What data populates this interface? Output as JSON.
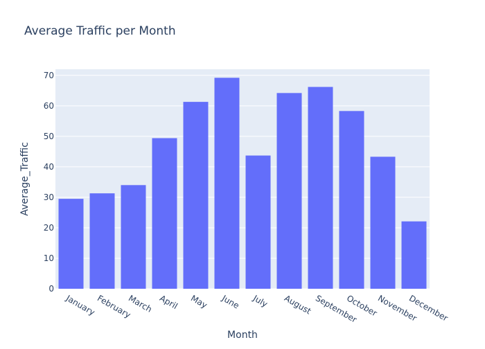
{
  "chart_data": {
    "type": "bar",
    "title": "Average Traffic per Month",
    "xlabel": "Month",
    "ylabel": "Average_Traffic",
    "categories": [
      "January",
      "February",
      "March",
      "April",
      "May",
      "June",
      "July",
      "August",
      "September",
      "October",
      "November",
      "December"
    ],
    "values": [
      29.5,
      31.3,
      34.0,
      49.4,
      61.3,
      69.2,
      43.7,
      64.2,
      66.2,
      58.3,
      43.3,
      22.1
    ],
    "ylim": [
      0,
      72
    ],
    "yticks": [
      0,
      10,
      20,
      30,
      40,
      50,
      60,
      70
    ],
    "grid": true,
    "bar_color": "#636efa",
    "plot_bg": "#e5ecf6",
    "text_color": "#2a3f5f"
  }
}
